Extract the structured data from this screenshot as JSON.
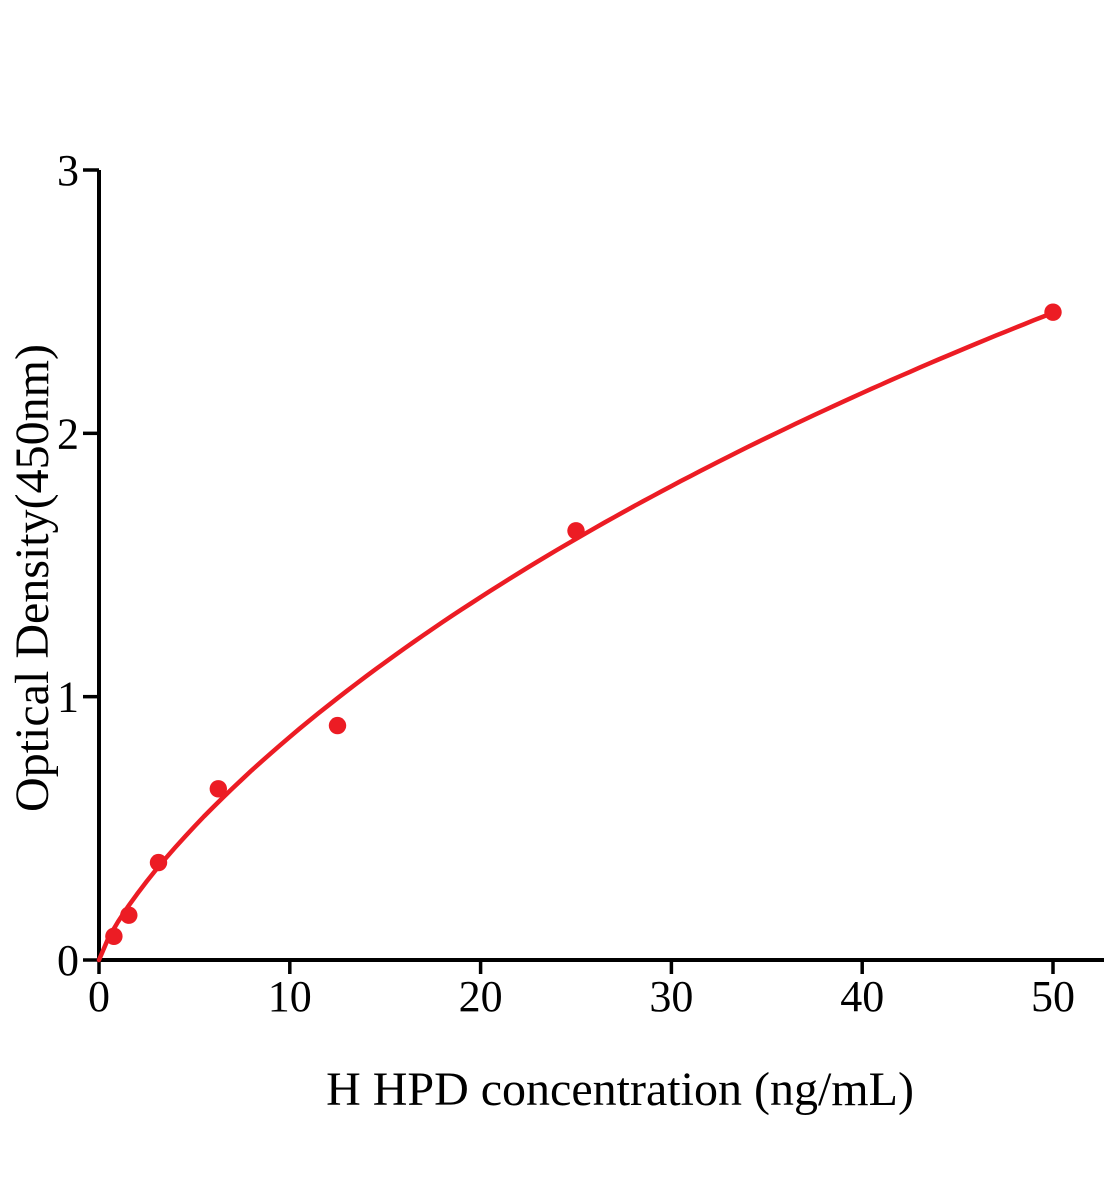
{
  "figure": {
    "background_color": "#ffffff",
    "axis_color": "#000000",
    "accent_color": "#EC1C24"
  },
  "chart_data": {
    "type": "scatter",
    "title": "",
    "xlabel": "H HPD concentration (ng/mL)",
    "ylabel": "Optical Density(450nm)",
    "xlim": [
      0,
      52.7
    ],
    "ylim": [
      0,
      3
    ],
    "xticks": [
      0,
      10,
      20,
      30,
      40,
      50
    ],
    "yticks": [
      0,
      1,
      2,
      3
    ],
    "grid": false,
    "legend": null,
    "series": [
      {
        "name": "standard-points",
        "type": "scatter",
        "color": "#EC1C24",
        "x": [
          0.78,
          1.56,
          3.12,
          6.25,
          12.5,
          25,
          50
        ],
        "y": [
          0.09,
          0.17,
          0.37,
          0.65,
          0.89,
          1.63,
          2.46
        ]
      },
      {
        "name": "fit-curve",
        "type": "line",
        "color": "#EC1C24",
        "fit_model": {
          "form": "y = D*x^b/(C + x^b)",
          "D": 8.93,
          "C": 60.2,
          "b": 0.8
        },
        "x_range": [
          0,
          50
        ]
      }
    ]
  }
}
